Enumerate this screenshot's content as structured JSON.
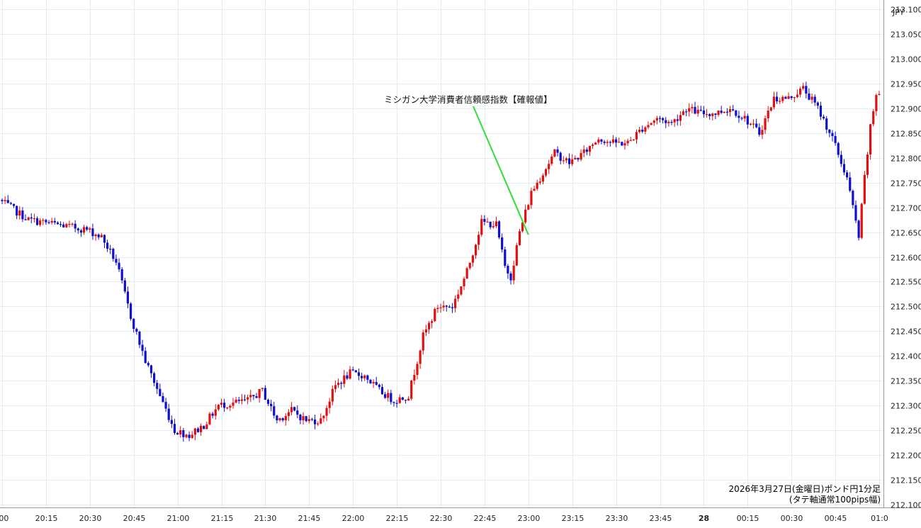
{
  "chart_data": {
    "type": "candlestick",
    "currency_label": "JPY",
    "caption_line1": "2026年3月27日(金曜日)ポンド円1分足",
    "caption_line2": "(タテ軸通常100pips幅)",
    "annotation": {
      "text": "ミシガン大学消費者信頼感指数【確報値】",
      "target_time": "23:00"
    },
    "ylim": [
      212.1,
      213.1
    ],
    "y_ticks": [
      "213.100",
      "213.050",
      "213.000",
      "212.950",
      "212.900",
      "212.850",
      "212.800",
      "212.750",
      "212.700",
      "212.650",
      "212.600",
      "212.550",
      "212.500",
      "212.450",
      "212.400",
      "212.350",
      "212.300",
      "212.250",
      "212.200",
      "212.150",
      "212.100"
    ],
    "x_ticks": [
      ":00",
      "20:15",
      "20:30",
      "20:45",
      "21:00",
      "21:15",
      "21:30",
      "21:45",
      "22:00",
      "22:15",
      "22:30",
      "22:45",
      "23:00",
      "23:15",
      "23:30",
      "23:45",
      "28",
      "00:15",
      "00:30",
      "00:45",
      "01:0"
    ],
    "bold_x_tick": "28",
    "up_color": "#e01010",
    "down_color": "#1010cc",
    "annotation_line_color": "#33dd33",
    "keyframes": [
      {
        "t": 0,
        "p": 212.715
      },
      {
        "t": 10,
        "p": 212.675
      },
      {
        "t": 20,
        "p": 212.665
      },
      {
        "t": 30,
        "p": 212.655
      },
      {
        "t": 35,
        "p": 212.64
      },
      {
        "t": 40,
        "p": 212.59
      },
      {
        "t": 45,
        "p": 212.48
      },
      {
        "t": 50,
        "p": 212.39
      },
      {
        "t": 55,
        "p": 212.32
      },
      {
        "t": 60,
        "p": 212.25
      },
      {
        "t": 65,
        "p": 212.24
      },
      {
        "t": 70,
        "p": 212.26
      },
      {
        "t": 75,
        "p": 212.3
      },
      {
        "t": 85,
        "p": 212.31
      },
      {
        "t": 90,
        "p": 212.33
      },
      {
        "t": 95,
        "p": 212.27
      },
      {
        "t": 100,
        "p": 212.29
      },
      {
        "t": 105,
        "p": 212.27
      },
      {
        "t": 110,
        "p": 212.27
      },
      {
        "t": 115,
        "p": 212.34
      },
      {
        "t": 120,
        "p": 212.365
      },
      {
        "t": 125,
        "p": 212.36
      },
      {
        "t": 130,
        "p": 212.33
      },
      {
        "t": 135,
        "p": 212.31
      },
      {
        "t": 140,
        "p": 212.32
      },
      {
        "t": 145,
        "p": 212.44
      },
      {
        "t": 150,
        "p": 212.5
      },
      {
        "t": 155,
        "p": 212.5
      },
      {
        "t": 160,
        "p": 212.57
      },
      {
        "t": 165,
        "p": 212.67
      },
      {
        "t": 170,
        "p": 212.665
      },
      {
        "t": 173,
        "p": 212.58
      },
      {
        "t": 175,
        "p": 212.56
      },
      {
        "t": 178,
        "p": 212.65
      },
      {
        "t": 182,
        "p": 212.73
      },
      {
        "t": 185,
        "p": 212.76
      },
      {
        "t": 190,
        "p": 212.81
      },
      {
        "t": 195,
        "p": 212.79
      },
      {
        "t": 200,
        "p": 212.81
      },
      {
        "t": 205,
        "p": 212.84
      },
      {
        "t": 210,
        "p": 212.83
      },
      {
        "t": 215,
        "p": 212.83
      },
      {
        "t": 220,
        "p": 212.86
      },
      {
        "t": 225,
        "p": 212.88
      },
      {
        "t": 230,
        "p": 212.87
      },
      {
        "t": 235,
        "p": 212.9
      },
      {
        "t": 240,
        "p": 212.89
      },
      {
        "t": 245,
        "p": 212.89
      },
      {
        "t": 250,
        "p": 212.9
      },
      {
        "t": 255,
        "p": 212.88
      },
      {
        "t": 260,
        "p": 212.85
      },
      {
        "t": 265,
        "p": 212.92
      },
      {
        "t": 270,
        "p": 212.92
      },
      {
        "t": 275,
        "p": 212.94
      },
      {
        "t": 280,
        "p": 212.9
      },
      {
        "t": 285,
        "p": 212.84
      },
      {
        "t": 288,
        "p": 212.79
      },
      {
        "t": 290,
        "p": 212.76
      },
      {
        "t": 292,
        "p": 212.7
      },
      {
        "t": 294,
        "p": 212.64
      },
      {
        "t": 296,
        "p": 212.76
      },
      {
        "t": 298,
        "p": 212.86
      },
      {
        "t": 300,
        "p": 212.93
      }
    ]
  }
}
